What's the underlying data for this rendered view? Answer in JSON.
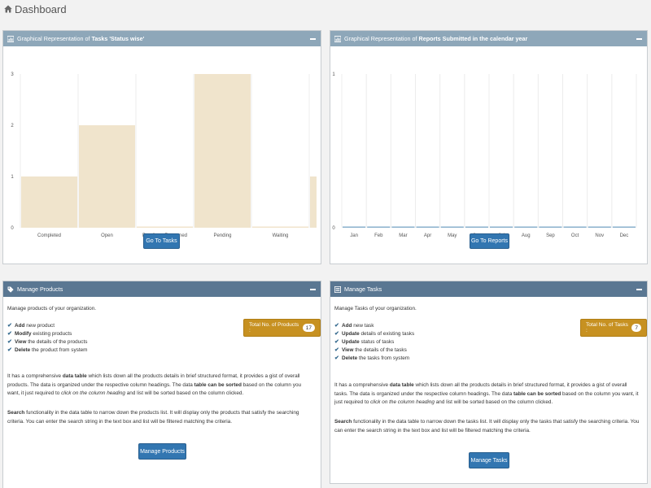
{
  "header": {
    "title": "Dashboard"
  },
  "tasks_chart_panel": {
    "title_prefix": "Graphical Representation of ",
    "title_bold": "Tasks 'Status wise'",
    "button": "Go To Tasks"
  },
  "reports_chart_panel": {
    "title_prefix": "Graphical Representation of ",
    "title_bold": "Reports Submitted in the calendar year",
    "button": "Go To Reports"
  },
  "products_panel": {
    "title": "Manage Products",
    "intro": "Manage products of your organization.",
    "features": [
      {
        "bold": "Add",
        "rest": " new product"
      },
      {
        "bold": "Modify",
        "rest": " existing products"
      },
      {
        "bold": "View",
        "rest": " the details of the products"
      },
      {
        "bold": "Delete",
        "rest": " the product from system"
      }
    ],
    "total_label": "Total No. of Products :",
    "total_count": "17",
    "p1_a": "It has a comprehensive ",
    "p1_b": "data table",
    "p1_c": " which lists down all the products details in brief structured format, it provides a gist of overall products. The data is organized under the respective column headings. The data ",
    "p1_d": "table can be sorted",
    "p1_e": " based on the column you want, it just required to ",
    "p1_f": "click on the column heading",
    "p1_g": " and list will be sorted based on the column clicked.",
    "p2_a": "Search",
    "p2_b": " functionality in the data table to narrow down the products list. It will display only the products that satisfy the searching criteria. You can enter the search string in the text box and list will be filtered matching the criteria.",
    "button": "Manage Products"
  },
  "tasks_panel": {
    "title": "Manage Tasks",
    "intro": "Manage Tasks of your organization.",
    "features": [
      {
        "bold": "Add",
        "rest": " new task"
      },
      {
        "bold": "Update",
        "rest": " details of existing tasks"
      },
      {
        "bold": "Update",
        "rest": " status of tasks"
      },
      {
        "bold": "View",
        "rest": " the details of the tasks"
      },
      {
        "bold": "Delete",
        "rest": " the tasks from system"
      }
    ],
    "total_label": "Total No. of Tasks :",
    "total_count": "7",
    "p1_a": "It has a comprehensive ",
    "p1_b": "data table",
    "p1_c": " which lists down all the products details in brief structured format, it provides a gist of overall tasks. The data is organized under the respective column headings. The data ",
    "p1_d": "table can be sorted",
    "p1_e": " based on the column you want, it just required to ",
    "p1_f": "click on the column heading",
    "p1_g": " and list will be sorted based on the column clicked.",
    "p2_a": "Search",
    "p2_b": " functionality in the data table to narrow down the tasks list. It will display only the tasks that satisfy the searching criteria. You can enter the search string in the text box and list will be filtered matching the criteria.",
    "button": "Manage Tasks"
  },
  "chart_data": [
    {
      "type": "bar",
      "categories": [
        "Completed",
        "Open",
        "Pending - Reopened",
        "Pending",
        "Waiting"
      ],
      "values": [
        1,
        2,
        0,
        3,
        0
      ],
      "partial_last_bar_value": 1,
      "ylim": [
        0,
        3
      ],
      "yticks": [
        0,
        1,
        2,
        3
      ],
      "color": "#f0e4cc",
      "grid": "vertical"
    },
    {
      "type": "bar",
      "categories": [
        "Jan",
        "Feb",
        "Mar",
        "Apr",
        "May",
        "Jun",
        "Jul",
        "Aug",
        "Sep",
        "Oct",
        "Nov",
        "Dec"
      ],
      "values": [
        0,
        0,
        0,
        0,
        0,
        0,
        0,
        0,
        0,
        0,
        0,
        0
      ],
      "ylim": [
        0,
        1
      ],
      "yticks": [
        0,
        1
      ],
      "color": "#8ab0cc",
      "grid": "vertical"
    }
  ]
}
